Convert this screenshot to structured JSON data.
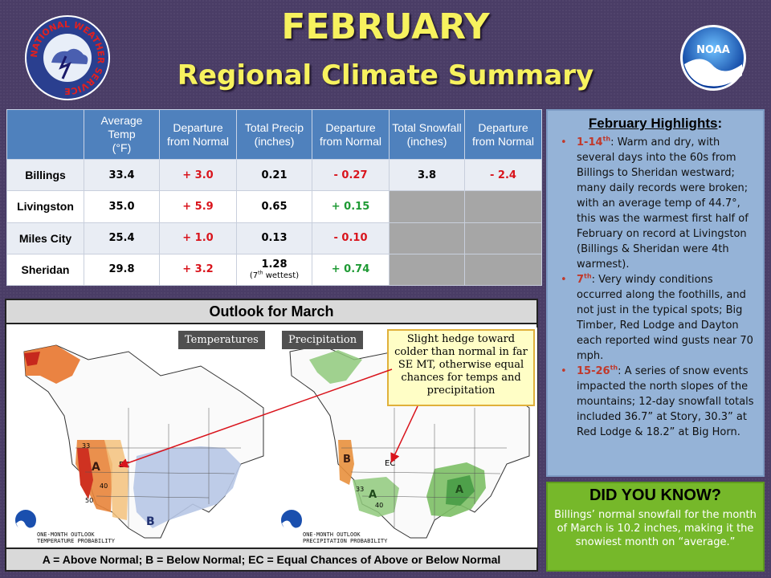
{
  "header": {
    "title": "FEBRUARY",
    "subtitle": "Regional Climate Summary",
    "nws_logo_text": "NATIONAL WEATHER SERVICE",
    "noaa_logo_text": "NOAA"
  },
  "table": {
    "headers": {
      "avg_temp": "Average Temp",
      "avg_temp_unit": "(°F)",
      "dep1": "Departure from Normal",
      "precip": "Total Precip (inches)",
      "dep2": "Departure from Normal",
      "snow": "Total Snowfall (inches)",
      "dep3": "Departure from Normal"
    },
    "rows": [
      {
        "city": "Billings",
        "avg_temp": "33.4",
        "temp_dep": "+ 3.0",
        "precip": "0.21",
        "precip_dep": "- 0.27",
        "snow": "3.8",
        "snow_dep": "- 2.4"
      },
      {
        "city": "Livingston",
        "avg_temp": "35.0",
        "temp_dep": "+ 5.9",
        "precip": "0.65",
        "precip_dep": "+ 0.15",
        "snow": "",
        "snow_dep": ""
      },
      {
        "city": "Miles City",
        "avg_temp": "25.4",
        "temp_dep": "+ 1.0",
        "precip": "0.13",
        "precip_dep": "- 0.10",
        "snow": "",
        "snow_dep": ""
      },
      {
        "city": "Sheridan",
        "avg_temp": "29.8",
        "temp_dep": "+ 3.2",
        "precip": "1.28",
        "precip_note": "wettest",
        "precip_dep": "+ 0.74",
        "snow": "",
        "snow_dep": ""
      }
    ]
  },
  "outlook": {
    "title": "Outlook for March",
    "temp_label": "Temperatures",
    "precip_label": "Precipitation",
    "temp_caption": "ONE-MONTH OUTLOOK\nTEMPERATURE PROBABILITY",
    "precip_caption": "ONE-MONTH OUTLOOK\nPRECIPITATION PROBABILITY",
    "callout": "Slight hedge toward colder than normal in far SE MT, otherwise equal chances for temps and precipitation",
    "legend": "A = Above Normal;  B = Below Normal;  EC = Equal Chances of Above or Below Normal",
    "map_text": {
      "ec": "EC",
      "a": "A",
      "b": "B",
      "n33": "33",
      "n40": "40",
      "n50": "50"
    }
  },
  "highlights": {
    "title": "February Highlights",
    "items": [
      {
        "date": "1-14",
        "text": ": Warm and dry, with several days into the 60s from Billings to Sheridan westward; many daily records were broken; with an average temp of 44.7°, this was the warmest first half of February on record at Livingston (Billings & Sheridan were 4th warmest)."
      },
      {
        "date": "7",
        "text": ": Very windy conditions occurred along the foothills, and not just in the typical spots; Big Timber, Red Lodge and Dayton each reported wind gusts near 70 mph."
      },
      {
        "date": "15-26",
        "text": ": A series of snow events impacted the north slopes of the mountains; 12-day snowfall totals included 36.7” at Story, 30.3” at Red Lodge & 18.2” at Big Horn."
      }
    ]
  },
  "did_you_know": {
    "title": "DID YOU KNOW?",
    "body": "Billings’ normal snowfall for the month of March is 10.2 inches, making it the snowiest month on “average.”"
  },
  "colors": {
    "background": "#4a3d66",
    "title_yellow": "#f7f25e",
    "table_header": "#4f81bd",
    "highlights_bg": "#95b3d7",
    "dyk_bg": "#76b82a",
    "red": "#d9141c",
    "green": "#1e9a34"
  }
}
